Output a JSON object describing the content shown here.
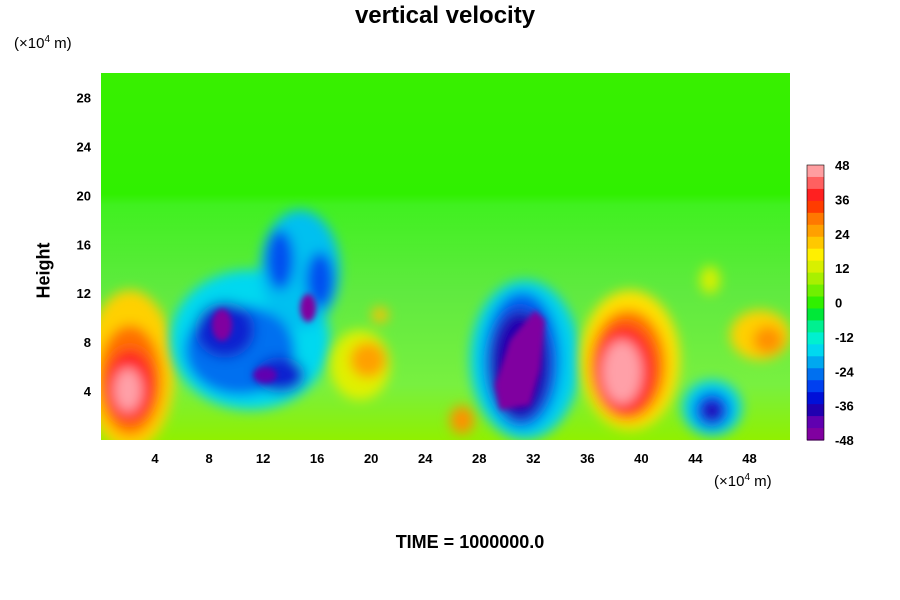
{
  "chart_data": {
    "type": "heatmap",
    "title": "vertical velocity",
    "ylabel": "Height",
    "xlabel": "",
    "x_unit_prefix": "(×10",
    "x_unit_exp": "4",
    "x_unit_suffix": " m)",
    "y_unit_prefix": "(×10",
    "y_unit_exp": "4",
    "y_unit_suffix": " m)",
    "x_range": [
      0,
      51
    ],
    "y_range": [
      0,
      30
    ],
    "x_ticks": [
      4,
      8,
      12,
      16,
      20,
      24,
      28,
      32,
      36,
      40,
      44,
      48
    ],
    "y_ticks": [
      4,
      8,
      12,
      16,
      20,
      24,
      28
    ],
    "colorbar": {
      "min": -48,
      "max": 48,
      "ticks": [
        48,
        36,
        24,
        12,
        0,
        -12,
        -24,
        -36,
        -48
      ],
      "levels": [
        "#ff9ea0",
        "#ff6060",
        "#ff2020",
        "#ff3c00",
        "#ff7800",
        "#ffa000",
        "#ffc800",
        "#fff000",
        "#d8f000",
        "#a8f000",
        "#70f000",
        "#30f000",
        "#00e838",
        "#00f090",
        "#00f0d0",
        "#00d8f0",
        "#00a8f0",
        "#0070f0",
        "#0040f0",
        "#0010d8",
        "#2000b0",
        "#6000b0",
        "#8000a0"
      ]
    },
    "features": [
      {
        "x": 3,
        "y": 5,
        "value": 48
      },
      {
        "x": 10,
        "y": 9,
        "value": -48
      },
      {
        "x": 15,
        "y": 11,
        "value": -48
      },
      {
        "x": 31,
        "y": 6,
        "value": -48
      },
      {
        "x": 38.5,
        "y": 5.5,
        "value": 48
      },
      {
        "x": 45.5,
        "y": 2,
        "value": -40
      },
      {
        "x": 27,
        "y": 1,
        "value": 30
      },
      {
        "x": 18.5,
        "y": 7,
        "value": 26
      },
      {
        "x": 50,
        "y": 8,
        "value": 22
      }
    ]
  },
  "footer": {
    "time_label": "TIME = 1000000.0"
  }
}
